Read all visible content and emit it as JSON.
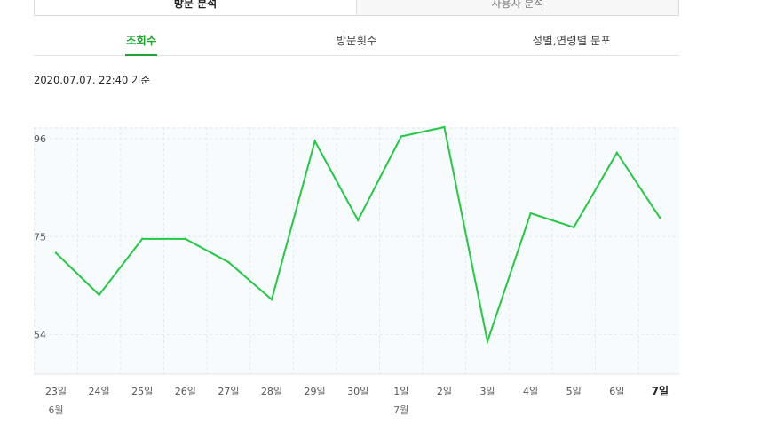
{
  "tabs": {
    "top": [
      {
        "label": "방문 분석",
        "active": true
      },
      {
        "label": "사용자 분석",
        "active": false
      }
    ],
    "sub": [
      {
        "label": "조회수",
        "active": true
      },
      {
        "label": "방문횟수",
        "active": false
      },
      {
        "label": "성별,연령별 분포",
        "active": false
      }
    ]
  },
  "timestamp": "2020.07.07. 22:40 기준",
  "colors": {
    "accent": "#1ca62f",
    "line": "#22c943",
    "plot_bg": "#f7fbfe",
    "grid": "#dde9f2"
  },
  "chart_data": {
    "type": "line",
    "title": "",
    "xlabel": "",
    "ylabel": "",
    "categories": [
      "23일",
      "24일",
      "25일",
      "26일",
      "27일",
      "28일",
      "29일",
      "30일",
      "1일",
      "2일",
      "3일",
      "4일",
      "5일",
      "6일",
      "7일"
    ],
    "month_labels": [
      {
        "index": 0,
        "label": "6월"
      },
      {
        "index": 8,
        "label": "7월"
      }
    ],
    "highlight_index": 14,
    "yticks": [
      54,
      75,
      96
    ],
    "ylim": [
      45.5,
      98.5
    ],
    "grid": true,
    "series": [
      {
        "values": [
          71.5,
          62.5,
          74.5,
          74.5,
          69.5,
          61.5,
          95.5,
          78.5,
          96.5,
          98.5,
          52.5,
          80.0,
          77.0,
          93.0,
          79.0
        ]
      }
    ]
  }
}
